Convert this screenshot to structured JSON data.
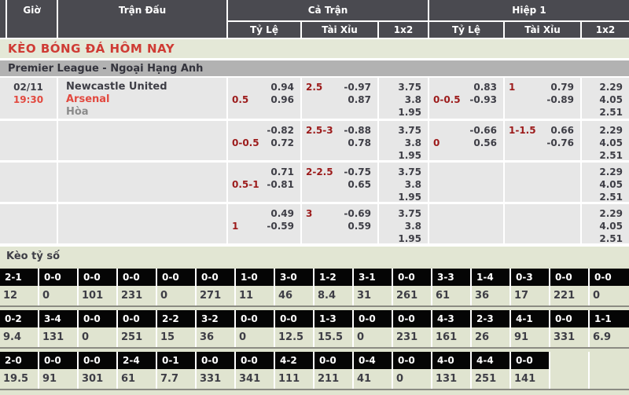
{
  "header": {
    "time": "Giờ",
    "match": "Trận Đấu",
    "full_match": "Cả Trận",
    "first_half": "Hiệp 1",
    "subs": [
      "Tỷ Lệ",
      "Tài Xỉu",
      "1x2",
      "Tỷ Lệ",
      "Tài Xỉu",
      "1x2"
    ]
  },
  "section_title": "KÈO BÓNG ĐÁ HÔM NAY",
  "league": "Premier League - Ngoại Hạng Anh",
  "match": {
    "date": "02/11",
    "time": "19:30",
    "home": "Newcastle United",
    "away": "Arsenal",
    "draw": "Hòa"
  },
  "odds_rows": [
    {
      "cells": [
        [
          [
            "",
            "0.94"
          ],
          [
            "0.5",
            "0.96"
          ]
        ],
        [
          [
            "2.5",
            "-0.97"
          ],
          [
            "",
            "0.87"
          ]
        ],
        [
          [
            "",
            "3.75"
          ],
          [
            "",
            "3.8"
          ],
          [
            "",
            "1.95"
          ]
        ],
        [
          [
            "",
            "0.83"
          ],
          [
            "0-0.5",
            "-0.93"
          ]
        ],
        [
          [
            "1",
            "0.79"
          ],
          [
            "",
            "-0.89"
          ]
        ],
        [
          [
            "",
            "2.29"
          ],
          [
            "",
            "4.05"
          ],
          [
            "",
            "2.51"
          ]
        ]
      ]
    },
    {
      "cells": [
        [
          [
            "",
            "-0.82"
          ],
          [
            "0-0.5",
            "0.72"
          ]
        ],
        [
          [
            "2.5-3",
            "-0.88"
          ],
          [
            "",
            "0.78"
          ]
        ],
        [
          [
            "",
            "3.75"
          ],
          [
            "",
            "3.8"
          ],
          [
            "",
            "1.95"
          ]
        ],
        [
          [
            "",
            "-0.66"
          ],
          [
            "0",
            "0.56"
          ]
        ],
        [
          [
            "1-1.5",
            "0.66"
          ],
          [
            "",
            "-0.76"
          ]
        ],
        [
          [
            "",
            "2.29"
          ],
          [
            "",
            "4.05"
          ],
          [
            "",
            "2.51"
          ]
        ]
      ]
    },
    {
      "cells": [
        [
          [
            "",
            "0.71"
          ],
          [
            "0.5-1",
            "-0.81"
          ]
        ],
        [
          [
            "2-2.5",
            "-0.75"
          ],
          [
            "",
            "0.65"
          ]
        ],
        [
          [
            "",
            "3.75"
          ],
          [
            "",
            "3.8"
          ],
          [
            "",
            "1.95"
          ]
        ],
        [],
        [],
        [
          [
            "",
            "2.29"
          ],
          [
            "",
            "4.05"
          ],
          [
            "",
            "2.51"
          ]
        ]
      ]
    },
    {
      "cells": [
        [
          [
            "",
            "0.49"
          ],
          [
            "1",
            "-0.59"
          ]
        ],
        [
          [
            "3",
            "-0.69"
          ],
          [
            "",
            "0.59"
          ]
        ],
        [
          [
            "",
            "3.75"
          ],
          [
            "",
            "3.8"
          ],
          [
            "",
            "1.95"
          ]
        ],
        [],
        [],
        [
          [
            "",
            "2.29"
          ],
          [
            "",
            "4.05"
          ],
          [
            "",
            "2.51"
          ]
        ]
      ]
    }
  ],
  "score_section": {
    "title": "Kèo tỷ số",
    "rows": [
      {
        "scores": [
          "2-1",
          "0-0",
          "0-0",
          "0-0",
          "0-0",
          "0-0",
          "1-0",
          "3-0",
          "1-2",
          "3-1",
          "0-0",
          "3-3",
          "1-4",
          "0-3",
          "0-0",
          "0-0"
        ],
        "values": [
          "12",
          "0",
          "101",
          "231",
          "0",
          "271",
          "11",
          "46",
          "8.4",
          "31",
          "261",
          "61",
          "36",
          "17",
          "221",
          "0"
        ]
      },
      {
        "scores": [
          "0-2",
          "3-4",
          "0-0",
          "0-0",
          "2-2",
          "3-2",
          "0-0",
          "0-0",
          "1-3",
          "0-0",
          "0-0",
          "4-3",
          "2-3",
          "4-1",
          "0-0",
          "1-1"
        ],
        "values": [
          "9.4",
          "131",
          "0",
          "251",
          "15",
          "36",
          "0",
          "12.5",
          "15.5",
          "0",
          "231",
          "161",
          "26",
          "91",
          "331",
          "6.9"
        ]
      },
      {
        "scores": [
          "2-0",
          "0-0",
          "0-0",
          "2-4",
          "0-1",
          "0-0",
          "0-0",
          "4-2",
          "0-0",
          "0-4",
          "0-0",
          "4-0",
          "4-4",
          "0-0",
          null,
          null
        ],
        "values": [
          "19.5",
          "91",
          "301",
          "61",
          "7.7",
          "331",
          "341",
          "111",
          "211",
          "41",
          "0",
          "131",
          "251",
          "141",
          null,
          null
        ]
      }
    ]
  },
  "colors": {
    "header_bg": "#4a4a50",
    "header_text": "#ffffff",
    "accent_red": "#e2493f",
    "section_title_red": "#cf3b34",
    "handicap_red": "#9c1b1b",
    "section_bar_bg": "#e4e8d7",
    "league_bar_bg": "#b2b2b2",
    "row_bg": "#e7e7e7",
    "score_box_bg": "#050505",
    "score_section_bg": "#e0e4d0",
    "text_dark": "#3e3e46"
  }
}
